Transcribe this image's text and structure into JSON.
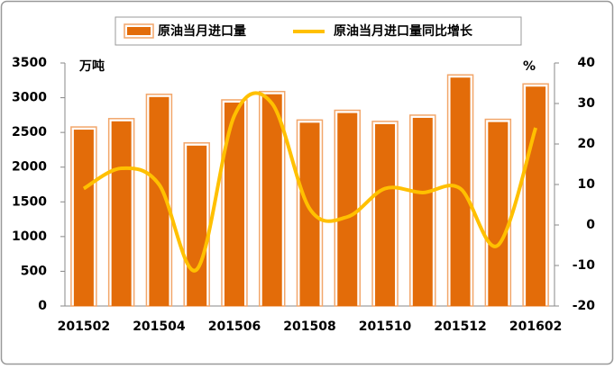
{
  "chart_data": {
    "type": "bar_line",
    "categories": [
      "201502",
      null,
      "201504",
      null,
      "201506",
      null,
      "201508",
      null,
      "201510",
      null,
      "201512",
      null,
      "201602"
    ],
    "ylabel": "万吨",
    "y2label": "%",
    "series": [
      {
        "name": "原油当月进口量",
        "type": "bar",
        "color": "#e36c09",
        "values": [
          2540,
          2660,
          3010,
          2310,
          2930,
          3050,
          2640,
          2780,
          2620,
          2710,
          3290,
          2650,
          3160
        ]
      },
      {
        "name": "原油当月进口量同比增长",
        "type": "line",
        "axis": "y2",
        "color": "#ffc000",
        "values": [
          9,
          14,
          10,
          -11,
          27,
          30,
          4,
          2,
          9,
          8,
          9,
          -5,
          24
        ]
      }
    ],
    "ylim": [
      0,
      3500
    ],
    "yticks": [
      0,
      500,
      1000,
      1500,
      2000,
      2500,
      3000,
      3500
    ],
    "y2lim": [
      -20,
      40
    ],
    "y2ticks": [
      -20,
      -10,
      0,
      10,
      20,
      30,
      40
    ],
    "grid": false
  }
}
